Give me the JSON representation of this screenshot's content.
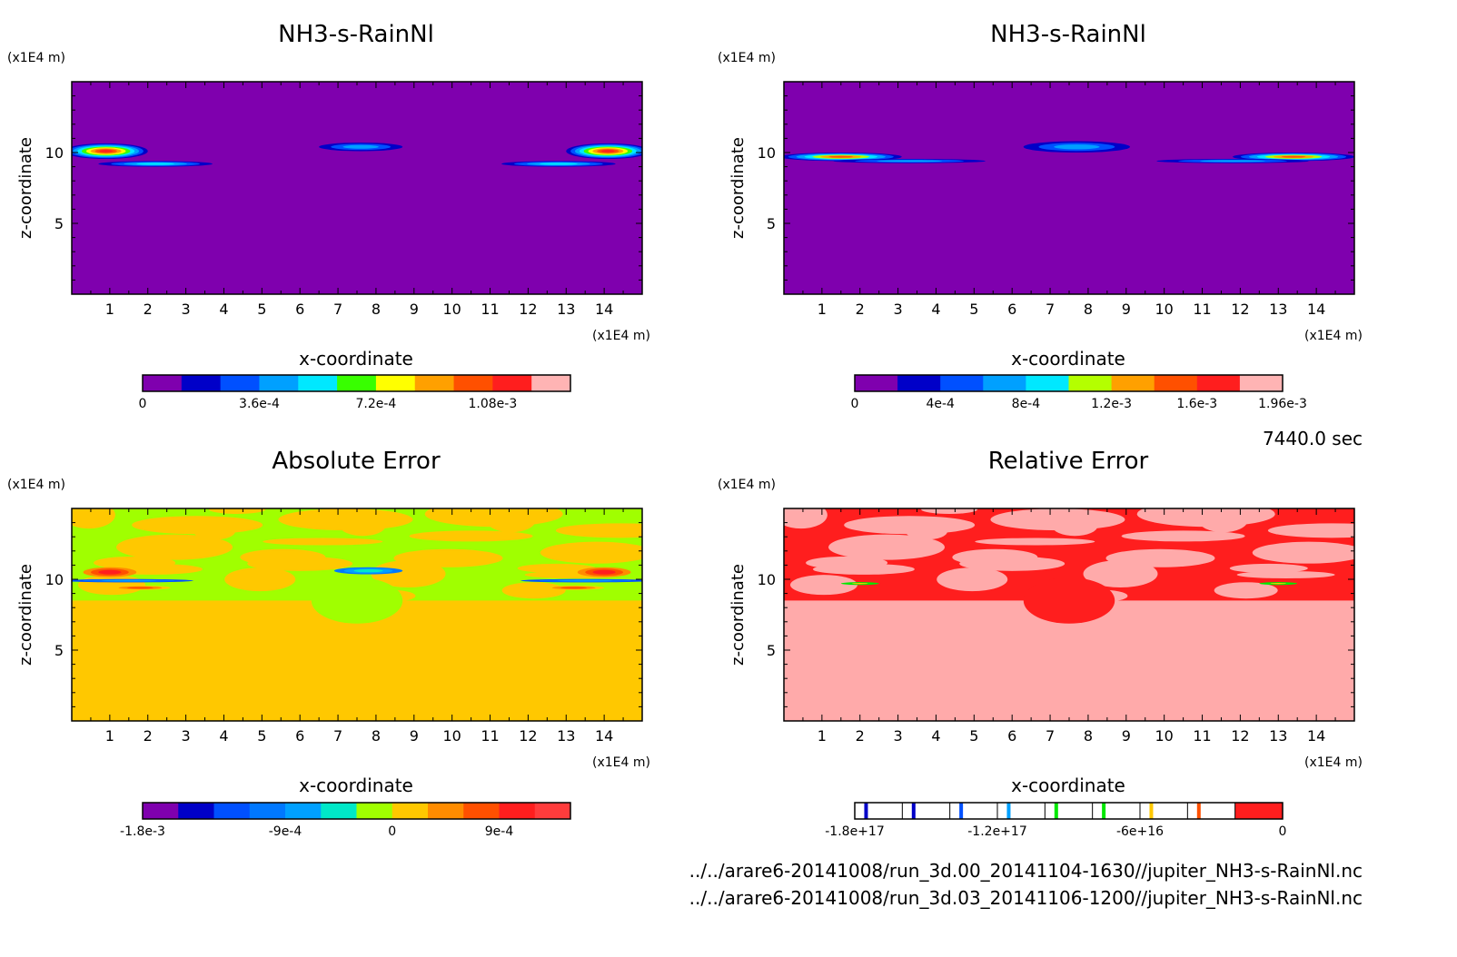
{
  "time_label": "7440.0 sec",
  "footer": {
    "file1": "../../arare6-20141008/run_3d.00_20141104-1630//jupiter_NH3-s-RainNl.nc",
    "file2": "../../arare6-20141008/run_3d.03_20141106-1200//jupiter_NH3-s-RainNl.nc"
  },
  "chart_data": [
    {
      "type": "heatmap",
      "title": "NH3-s-RainNl",
      "xlabel": "x-coordinate",
      "ylabel": "z-coordinate",
      "x_unit": "(x1E4 m)",
      "z_unit": "(x1E4 m)",
      "xlim": [
        0,
        15
      ],
      "zlim": [
        0,
        15
      ],
      "x_ticks": [
        1,
        2,
        3,
        4,
        5,
        6,
        7,
        8,
        9,
        10,
        11,
        12,
        13,
        14
      ],
      "z_ticks": [
        5,
        10
      ],
      "background_color": "#7f00ae",
      "colorbar": {
        "colors": [
          "#7f00ae",
          "#0000c8",
          "#0050ff",
          "#00a0ff",
          "#00e8ff",
          "#38ff00",
          "#ffff00",
          "#ffa000",
          "#ff5000",
          "#ff1e1e",
          "#ffb4b4"
        ],
        "labels": [
          "0",
          "3.6e-4",
          "7.2e-4",
          "1.08e-3"
        ],
        "label_at_bin": [
          0,
          3,
          6,
          9
        ]
      },
      "features": [
        {
          "x": 0.9,
          "z": 10.1,
          "rx": 1.1,
          "rz": 0.55,
          "rank": 9
        },
        {
          "x": 2.2,
          "z": 9.2,
          "rx": 1.5,
          "rz": 0.2,
          "rank": 4
        },
        {
          "x": 7.6,
          "z": 10.4,
          "rx": 1.1,
          "rz": 0.3,
          "rank": 3
        },
        {
          "x": 14.1,
          "z": 10.1,
          "rx": 1.1,
          "rz": 0.55,
          "rank": 9
        },
        {
          "x": 12.8,
          "z": 9.2,
          "rx": 1.5,
          "rz": 0.2,
          "rank": 4
        }
      ]
    },
    {
      "type": "heatmap",
      "title": "NH3-s-RainNl",
      "xlabel": "x-coordinate",
      "ylabel": "z-coordinate",
      "x_unit": "(x1E4 m)",
      "z_unit": "(x1E4 m)",
      "xlim": [
        0,
        15
      ],
      "zlim": [
        0,
        15
      ],
      "x_ticks": [
        1,
        2,
        3,
        4,
        5,
        6,
        7,
        8,
        9,
        10,
        11,
        12,
        13,
        14
      ],
      "z_ticks": [
        5,
        10
      ],
      "background_color": "#7f00ae",
      "colorbar": {
        "colors": [
          "#7f00ae",
          "#0000c8",
          "#0050ff",
          "#00a0ff",
          "#00e8ff",
          "#b4ff00",
          "#ffa000",
          "#ff5000",
          "#ff1e1e",
          "#ffb4b4"
        ],
        "labels": [
          "0",
          "4e-4",
          "8e-4",
          "1.2e-3",
          "1.6e-3",
          "1.96e-3"
        ],
        "label_at_bin": [
          0,
          2,
          4,
          6,
          8,
          10
        ]
      },
      "features": [
        {
          "x": 1.5,
          "z": 9.7,
          "rx": 1.6,
          "rz": 0.3,
          "rank": 7
        },
        {
          "x": 3.3,
          "z": 9.4,
          "rx": 2.0,
          "rz": 0.15,
          "rank": 3
        },
        {
          "x": 7.7,
          "z": 10.4,
          "rx": 1.4,
          "rz": 0.4,
          "rank": 3
        },
        {
          "x": 13.4,
          "z": 9.7,
          "rx": 1.6,
          "rz": 0.3,
          "rank": 7
        },
        {
          "x": 11.8,
          "z": 9.4,
          "rx": 2.0,
          "rz": 0.15,
          "rank": 3
        }
      ]
    },
    {
      "type": "heatmap",
      "title": "Absolute Error",
      "xlabel": "x-coordinate",
      "ylabel": "z-coordinate",
      "x_unit": "(x1E4 m)",
      "z_unit": "(x1E4 m)",
      "xlim": [
        0,
        15
      ],
      "zlim": [
        0,
        15
      ],
      "x_ticks": [
        1,
        2,
        3,
        4,
        5,
        6,
        7,
        8,
        9,
        10,
        11,
        12,
        13,
        14
      ],
      "z_ticks": [
        5,
        10
      ],
      "background_color": "#ffc800",
      "colorbar": {
        "colors": [
          "#7f00ae",
          "#0000c8",
          "#0050ff",
          "#0078ff",
          "#00a0ff",
          "#00e8c8",
          "#a0ff00",
          "#ffc800",
          "#ff8c00",
          "#ff5000",
          "#ff1e1e",
          "#ff3c3c"
        ],
        "labels": [
          "-1.8e-3",
          "-9e-4",
          "0",
          "9e-4"
        ],
        "label_at_bin": [
          0,
          4,
          7,
          10
        ]
      },
      "band": {
        "color": "#a0ff00",
        "z_min": 8.5,
        "z_max": 15
      },
      "features": [
        {
          "x": 1.0,
          "z": 10.5,
          "rx": 0.7,
          "rz": 0.35,
          "rank": 10
        },
        {
          "x": 14.0,
          "z": 10.5,
          "rx": 0.7,
          "rz": 0.35,
          "rank": 10
        },
        {
          "x": 1.8,
          "z": 9.4,
          "rx": 0.8,
          "rz": 0.15,
          "rank": 9
        },
        {
          "x": 13.2,
          "z": 9.4,
          "rx": 0.8,
          "rz": 0.15,
          "rank": 9
        },
        {
          "x": 1.5,
          "z": 9.9,
          "rx": 1.7,
          "rz": 0.12,
          "rank": 4
        },
        {
          "x": 13.5,
          "z": 9.9,
          "rx": 1.7,
          "rz": 0.12,
          "rank": 4
        },
        {
          "x": 7.8,
          "z": 10.6,
          "rx": 0.9,
          "rz": 0.25,
          "rank": 5
        }
      ]
    },
    {
      "type": "heatmap",
      "title": "Relative Error",
      "xlabel": "x-coordinate",
      "ylabel": "z-coordinate",
      "x_unit": "(x1E4 m)",
      "z_unit": "(x1E4 m)",
      "xlim": [
        0,
        15
      ],
      "zlim": [
        0,
        15
      ],
      "x_ticks": [
        1,
        2,
        3,
        4,
        5,
        6,
        7,
        8,
        9,
        10,
        11,
        12,
        13,
        14
      ],
      "z_ticks": [
        5,
        10
      ],
      "background_color": "#ffaaaa",
      "colorbar": {
        "colors": [
          "#0000c8",
          "#0000c8",
          "#0050ff",
          "#00a0ff",
          "#00e800",
          "#00e800",
          "#ffc800",
          "#ff5000",
          "#ff1e1e"
        ],
        "thin": true,
        "labels": [
          "-1.8e+17",
          "-1.2e+17",
          "-6e+16",
          "0"
        ],
        "label_at_bin": [
          0,
          3,
          6,
          9
        ]
      },
      "band": {
        "color": "#ff1e1e",
        "z_min": 8.5,
        "z_max": 15
      },
      "features": [
        {
          "x": 2.0,
          "z": 9.7,
          "rx": 0.5,
          "rz": 0.1,
          "rank": 6
        },
        {
          "x": 13.0,
          "z": 9.7,
          "rx": 0.5,
          "rz": 0.1,
          "rank": 6
        }
      ]
    }
  ]
}
